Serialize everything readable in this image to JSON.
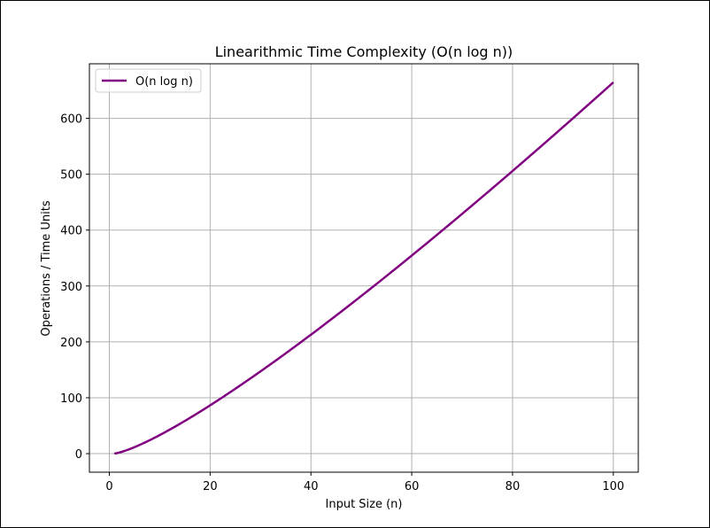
{
  "chart_data": {
    "type": "line",
    "title": "Linearithmic Time Complexity (O(n log n))",
    "xlabel": "Input Size (n)",
    "ylabel": "Operations / Time Units",
    "xlim": [
      -3.95,
      104.95
    ],
    "ylim": [
      -33.2,
      697.6
    ],
    "xticks": [
      0,
      20,
      40,
      60,
      80,
      100
    ],
    "yticks": [
      0,
      100,
      200,
      300,
      400,
      500,
      600
    ],
    "grid": true,
    "legend_position": "top-left",
    "series": [
      {
        "name": "O(n log n)",
        "color": "#800080",
        "function": "n*log2(n)",
        "x": [
          1,
          2,
          5,
          10,
          15,
          20,
          25,
          30,
          35,
          40,
          45,
          50,
          55,
          60,
          65,
          70,
          75,
          80,
          85,
          90,
          95,
          100
        ],
        "y": [
          0,
          2,
          11.6,
          33.2,
          58.6,
          86.4,
          116.1,
          147.2,
          179.5,
          212.9,
          247.1,
          282.2,
          318,
          354.4,
          391.5,
          429.1,
          467.1,
          505.8,
          544.8,
          584.3,
          624.1,
          664.4
        ]
      }
    ]
  }
}
